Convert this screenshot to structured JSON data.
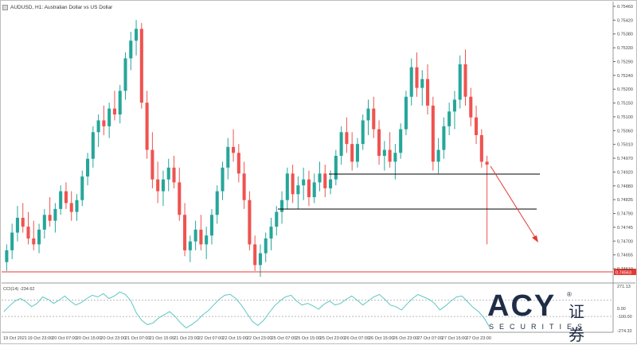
{
  "window": {
    "title": "AUDUSD, H1: Australian Dollar vs US Dollar"
  },
  "price_axis": {
    "ticks": [
      "0.75460",
      "0.75420",
      "0.75380",
      "0.75330",
      "0.75290",
      "0.75240",
      "0.75200",
      "0.75150",
      "0.75100",
      "0.75060",
      "0.75010",
      "0.74970",
      "0.74920",
      "0.74880",
      "0.74835",
      "0.74790",
      "0.74745",
      "0.74700",
      "0.74655",
      "0.74610"
    ],
    "current_price": "0.74563"
  },
  "cci_panel": {
    "label": "CCI(14) -234.62",
    "ticks": [
      "271.13",
      "0.00",
      "-100.00",
      "-274.32"
    ]
  },
  "time_axis": {
    "ticks": [
      "19 Oct 2021",
      "19 Oct 23:00",
      "20 Oct 07:00",
      "20 Oct 15:00",
      "20 Oct 23:00",
      "21 Oct 07:00",
      "21 Oct 15:00",
      "21 Oct 23:00",
      "22 Oct 07:00",
      "22 Oct 15:00",
      "22 Oct 23:00",
      "25 Oct 07:00",
      "25 Oct 15:00",
      "25 Oct 23:00",
      "26 Oct 07:00",
      "26 Oct 15:00",
      "26 Oct 23:00",
      "27 Oct 07:00",
      "27 Oct 15:00",
      "27 Oct 23:00"
    ]
  },
  "colors": {
    "bull": "#26a69a",
    "bear": "#ef5350",
    "support_line": "#e53935",
    "arrow": "#e53935",
    "cci_line": "#5cc7c2",
    "logo": "#1f2d46"
  },
  "logo": {
    "brand": "ACY",
    "chinese": "证券",
    "registered": "®",
    "tagline": "SECURITIES"
  },
  "chart_data": {
    "type": "candlestick",
    "symbol": "AUDUSD",
    "timeframe": "H1",
    "ylim": [
      0.7456,
      0.7547
    ],
    "candles": [
      {
        "o": 0.7462,
        "h": 0.7468,
        "l": 0.7459,
        "c": 0.7466
      },
      {
        "o": 0.7466,
        "h": 0.7475,
        "l": 0.7463,
        "c": 0.7472
      },
      {
        "o": 0.7472,
        "h": 0.7481,
        "l": 0.7469,
        "c": 0.7477
      },
      {
        "o": 0.7477,
        "h": 0.7482,
        "l": 0.7472,
        "c": 0.7474
      },
      {
        "o": 0.7474,
        "h": 0.7479,
        "l": 0.7468,
        "c": 0.747
      },
      {
        "o": 0.747,
        "h": 0.7476,
        "l": 0.7466,
        "c": 0.7468
      },
      {
        "o": 0.7468,
        "h": 0.7475,
        "l": 0.7465,
        "c": 0.7473
      },
      {
        "o": 0.7473,
        "h": 0.748,
        "l": 0.747,
        "c": 0.7478
      },
      {
        "o": 0.7478,
        "h": 0.7484,
        "l": 0.7474,
        "c": 0.7476
      },
      {
        "o": 0.7476,
        "h": 0.7482,
        "l": 0.7472,
        "c": 0.748
      },
      {
        "o": 0.748,
        "h": 0.7488,
        "l": 0.7478,
        "c": 0.7486
      },
      {
        "o": 0.7486,
        "h": 0.7489,
        "l": 0.748,
        "c": 0.7482
      },
      {
        "o": 0.7482,
        "h": 0.7486,
        "l": 0.7476,
        "c": 0.7479
      },
      {
        "o": 0.7479,
        "h": 0.7485,
        "l": 0.7476,
        "c": 0.7483
      },
      {
        "o": 0.7483,
        "h": 0.7493,
        "l": 0.7481,
        "c": 0.7491
      },
      {
        "o": 0.7491,
        "h": 0.7499,
        "l": 0.7488,
        "c": 0.7497
      },
      {
        "o": 0.7497,
        "h": 0.7508,
        "l": 0.7494,
        "c": 0.7506
      },
      {
        "o": 0.7506,
        "h": 0.7512,
        "l": 0.7501,
        "c": 0.751
      },
      {
        "o": 0.751,
        "h": 0.7515,
        "l": 0.7505,
        "c": 0.7508
      },
      {
        "o": 0.7508,
        "h": 0.7516,
        "l": 0.7504,
        "c": 0.7514
      },
      {
        "o": 0.7514,
        "h": 0.752,
        "l": 0.751,
        "c": 0.7512
      },
      {
        "o": 0.7512,
        "h": 0.7522,
        "l": 0.7509,
        "c": 0.752
      },
      {
        "o": 0.752,
        "h": 0.7533,
        "l": 0.7517,
        "c": 0.7531
      },
      {
        "o": 0.7531,
        "h": 0.754,
        "l": 0.7527,
        "c": 0.7537
      },
      {
        "o": 0.7537,
        "h": 0.7544,
        "l": 0.7532,
        "c": 0.7541
      },
      {
        "o": 0.7541,
        "h": 0.7543,
        "l": 0.7514,
        "c": 0.7516
      },
      {
        "o": 0.7516,
        "h": 0.752,
        "l": 0.7497,
        "c": 0.75
      },
      {
        "o": 0.75,
        "h": 0.7506,
        "l": 0.7487,
        "c": 0.749
      },
      {
        "o": 0.749,
        "h": 0.7496,
        "l": 0.7482,
        "c": 0.7486
      },
      {
        "o": 0.7486,
        "h": 0.7493,
        "l": 0.7481,
        "c": 0.749
      },
      {
        "o": 0.749,
        "h": 0.7497,
        "l": 0.7486,
        "c": 0.7494
      },
      {
        "o": 0.7494,
        "h": 0.7498,
        "l": 0.7487,
        "c": 0.7489
      },
      {
        "o": 0.7489,
        "h": 0.7494,
        "l": 0.7476,
        "c": 0.7478
      },
      {
        "o": 0.7478,
        "h": 0.7482,
        "l": 0.7464,
        "c": 0.7466
      },
      {
        "o": 0.7466,
        "h": 0.7471,
        "l": 0.7462,
        "c": 0.7469
      },
      {
        "o": 0.7469,
        "h": 0.7476,
        "l": 0.7466,
        "c": 0.7473
      },
      {
        "o": 0.7473,
        "h": 0.7478,
        "l": 0.7466,
        "c": 0.7468
      },
      {
        "o": 0.7468,
        "h": 0.7474,
        "l": 0.7463,
        "c": 0.7471
      },
      {
        "o": 0.7471,
        "h": 0.748,
        "l": 0.7468,
        "c": 0.7478
      },
      {
        "o": 0.7478,
        "h": 0.7488,
        "l": 0.7475,
        "c": 0.7486
      },
      {
        "o": 0.7486,
        "h": 0.7496,
        "l": 0.7483,
        "c": 0.7494
      },
      {
        "o": 0.7494,
        "h": 0.7504,
        "l": 0.749,
        "c": 0.7501
      },
      {
        "o": 0.7501,
        "h": 0.7507,
        "l": 0.7496,
        "c": 0.7499
      },
      {
        "o": 0.7499,
        "h": 0.7502,
        "l": 0.7489,
        "c": 0.7492
      },
      {
        "o": 0.7492,
        "h": 0.7496,
        "l": 0.748,
        "c": 0.7483
      },
      {
        "o": 0.7483,
        "h": 0.7486,
        "l": 0.7466,
        "c": 0.7468
      },
      {
        "o": 0.7468,
        "h": 0.7471,
        "l": 0.7459,
        "c": 0.7461
      },
      {
        "o": 0.7461,
        "h": 0.7468,
        "l": 0.7457,
        "c": 0.7465
      },
      {
        "o": 0.7465,
        "h": 0.7472,
        "l": 0.7462,
        "c": 0.747
      },
      {
        "o": 0.747,
        "h": 0.7477,
        "l": 0.7466,
        "c": 0.7474
      },
      {
        "o": 0.7474,
        "h": 0.7481,
        "l": 0.7471,
        "c": 0.7479
      },
      {
        "o": 0.7479,
        "h": 0.7486,
        "l": 0.7475,
        "c": 0.7483
      },
      {
        "o": 0.7483,
        "h": 0.7494,
        "l": 0.748,
        "c": 0.7492
      },
      {
        "o": 0.7492,
        "h": 0.7495,
        "l": 0.7482,
        "c": 0.7485
      },
      {
        "o": 0.7485,
        "h": 0.7491,
        "l": 0.748,
        "c": 0.7488
      },
      {
        "o": 0.7488,
        "h": 0.7494,
        "l": 0.7483,
        "c": 0.749
      },
      {
        "o": 0.749,
        "h": 0.7493,
        "l": 0.7481,
        "c": 0.7484
      },
      {
        "o": 0.7484,
        "h": 0.7492,
        "l": 0.7482,
        "c": 0.7489
      },
      {
        "o": 0.7489,
        "h": 0.7496,
        "l": 0.7486,
        "c": 0.7492
      },
      {
        "o": 0.7492,
        "h": 0.7495,
        "l": 0.7484,
        "c": 0.7487
      },
      {
        "o": 0.7487,
        "h": 0.7493,
        "l": 0.7485,
        "c": 0.749
      },
      {
        "o": 0.749,
        "h": 0.75,
        "l": 0.7488,
        "c": 0.7498
      },
      {
        "o": 0.7498,
        "h": 0.7508,
        "l": 0.7495,
        "c": 0.7506
      },
      {
        "o": 0.7506,
        "h": 0.7511,
        "l": 0.7499,
        "c": 0.7502
      },
      {
        "o": 0.7502,
        "h": 0.7506,
        "l": 0.7493,
        "c": 0.7496
      },
      {
        "o": 0.7496,
        "h": 0.7504,
        "l": 0.7494,
        "c": 0.7502
      },
      {
        "o": 0.7502,
        "h": 0.7512,
        "l": 0.75,
        "c": 0.751
      },
      {
        "o": 0.751,
        "h": 0.7517,
        "l": 0.7505,
        "c": 0.7514
      },
      {
        "o": 0.7514,
        "h": 0.7518,
        "l": 0.7504,
        "c": 0.7507
      },
      {
        "o": 0.7507,
        "h": 0.751,
        "l": 0.7495,
        "c": 0.7498
      },
      {
        "o": 0.7498,
        "h": 0.7503,
        "l": 0.7493,
        "c": 0.75
      },
      {
        "o": 0.75,
        "h": 0.7506,
        "l": 0.7494,
        "c": 0.7496
      },
      {
        "o": 0.7496,
        "h": 0.7502,
        "l": 0.749,
        "c": 0.7499
      },
      {
        "o": 0.7499,
        "h": 0.7509,
        "l": 0.7497,
        "c": 0.7507
      },
      {
        "o": 0.7507,
        "h": 0.752,
        "l": 0.7505,
        "c": 0.7518
      },
      {
        "o": 0.7518,
        "h": 0.7531,
        "l": 0.7515,
        "c": 0.7528
      },
      {
        "o": 0.7528,
        "h": 0.7533,
        "l": 0.7518,
        "c": 0.7521
      },
      {
        "o": 0.7521,
        "h": 0.7527,
        "l": 0.7515,
        "c": 0.7524
      },
      {
        "o": 0.7524,
        "h": 0.7529,
        "l": 0.7512,
        "c": 0.7515
      },
      {
        "o": 0.7515,
        "h": 0.7518,
        "l": 0.7493,
        "c": 0.7496
      },
      {
        "o": 0.7496,
        "h": 0.7504,
        "l": 0.7492,
        "c": 0.75
      },
      {
        "o": 0.75,
        "h": 0.7511,
        "l": 0.7497,
        "c": 0.7508
      },
      {
        "o": 0.7508,
        "h": 0.7516,
        "l": 0.7505,
        "c": 0.7513
      },
      {
        "o": 0.7513,
        "h": 0.752,
        "l": 0.7507,
        "c": 0.7517
      },
      {
        "o": 0.7517,
        "h": 0.7532,
        "l": 0.7514,
        "c": 0.7529
      },
      {
        "o": 0.7529,
        "h": 0.7534,
        "l": 0.7515,
        "c": 0.7518
      },
      {
        "o": 0.7518,
        "h": 0.7521,
        "l": 0.7508,
        "c": 0.7511
      },
      {
        "o": 0.7511,
        "h": 0.7515,
        "l": 0.7502,
        "c": 0.7505
      },
      {
        "o": 0.7505,
        "h": 0.7507,
        "l": 0.7494,
        "c": 0.7496
      },
      {
        "o": 0.7496,
        "h": 0.7498,
        "l": 0.7468,
        "c": 0.7495
      }
    ]
  }
}
